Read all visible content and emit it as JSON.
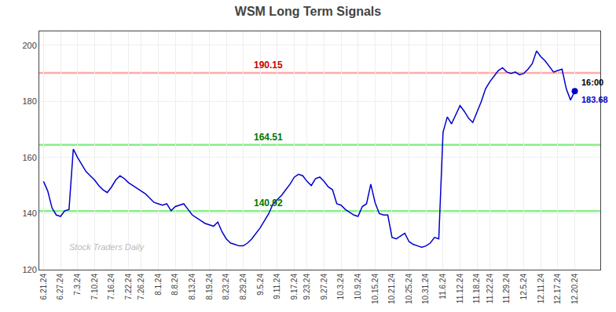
{
  "chart_data": {
    "type": "line",
    "title": "WSM Long Term Signals",
    "color": "#0000cc",
    "grid": true,
    "ylim": [
      120,
      205
    ],
    "yticks": [
      120,
      140,
      160,
      180,
      200
    ],
    "categories": [
      "6.21.24",
      null,
      null,
      null,
      "6.27.24",
      null,
      null,
      null,
      "7.3.24",
      null,
      null,
      null,
      "7.10.24",
      null,
      null,
      null,
      "7.16.24",
      null,
      null,
      null,
      "7.22.24",
      null,
      null,
      "7.26.24",
      null,
      null,
      null,
      "8.1.24",
      null,
      null,
      null,
      "8.8.24",
      null,
      null,
      null,
      "8.13.24",
      null,
      null,
      null,
      "8.19.24",
      null,
      null,
      null,
      "8.23.24",
      null,
      null,
      null,
      "8.29.24",
      null,
      null,
      null,
      "9.5.24",
      null,
      null,
      null,
      "9.11.24",
      null,
      null,
      null,
      "9.17.24",
      null,
      null,
      "9.23.24",
      null,
      null,
      null,
      "9.27.24",
      null,
      null,
      null,
      "10.3.24",
      null,
      null,
      null,
      "10.9.24",
      null,
      null,
      null,
      "10.15.24",
      null,
      null,
      null,
      "10.21.24",
      null,
      null,
      null,
      "10.25.24",
      null,
      null,
      null,
      "10.31.24",
      null,
      null,
      null,
      "11.6.24",
      null,
      null,
      null,
      "11.12.24",
      null,
      null,
      null,
      "11.18.24",
      null,
      null,
      "11.22.24",
      null,
      null,
      null,
      "11.29.24",
      null,
      null,
      null,
      "12.5.24",
      null,
      null,
      null,
      "12.11.24",
      null,
      null,
      null,
      "12.17.24",
      null,
      null,
      null,
      "12.20.24"
    ],
    "values": [
      151.5,
      148.0,
      142.0,
      139.5,
      139.0,
      141.0,
      141.5,
      163.0,
      160.0,
      157.5,
      155.0,
      153.5,
      152.0,
      150.0,
      148.5,
      147.5,
      149.5,
      152.0,
      153.5,
      152.5,
      151.0,
      150.0,
      149.0,
      148.0,
      147.0,
      145.5,
      144.0,
      143.5,
      143.0,
      143.5,
      141.0,
      142.5,
      143.0,
      143.5,
      141.5,
      139.5,
      138.5,
      137.5,
      136.5,
      136.0,
      135.5,
      137.0,
      133.5,
      131.0,
      129.5,
      129.0,
      128.5,
      128.5,
      129.5,
      131.0,
      133.0,
      135.0,
      137.5,
      140.0,
      143.5,
      145.0,
      146.5,
      148.5,
      150.5,
      153.0,
      154.0,
      153.5,
      151.5,
      150.0,
      152.5,
      153.0,
      151.5,
      149.5,
      148.5,
      143.5,
      143.0,
      141.5,
      140.5,
      139.5,
      139.0,
      142.5,
      143.5,
      150.5,
      144.0,
      140.0,
      139.5,
      139.5,
      131.5,
      131.0,
      132.0,
      133.0,
      130.0,
      129.0,
      128.5,
      128.0,
      128.5,
      129.5,
      131.5,
      131.0,
      169.0,
      174.5,
      172.0,
      175.5,
      178.5,
      176.5,
      174.0,
      172.5,
      176.0,
      180.0,
      184.5,
      187.0,
      189.0,
      191.0,
      192.0,
      190.5,
      190.0,
      190.5,
      189.5,
      190.0,
      191.5,
      193.5,
      198.0,
      196.0,
      194.5,
      192.5,
      190.5,
      191.0,
      191.5,
      184.5,
      180.5,
      183.68
    ],
    "reference_lines": [
      {
        "value": 190.15,
        "label": "190.15",
        "color": "#ffaaaa",
        "label_color": "#cc0000"
      },
      {
        "value": 164.51,
        "label": "164.51",
        "color": "#88ee88",
        "label_color": "#007700"
      },
      {
        "value": 140.92,
        "label": "140.92",
        "color": "#88ee88",
        "label_color": "#007700"
      }
    ],
    "annotations": [
      {
        "text": "16:00",
        "color": "#000000"
      },
      {
        "text": "183.68",
        "color": "#0000cc"
      }
    ],
    "watermark": {
      "text": "Stock Traders Daily",
      "color": "#bbbbbb"
    }
  }
}
